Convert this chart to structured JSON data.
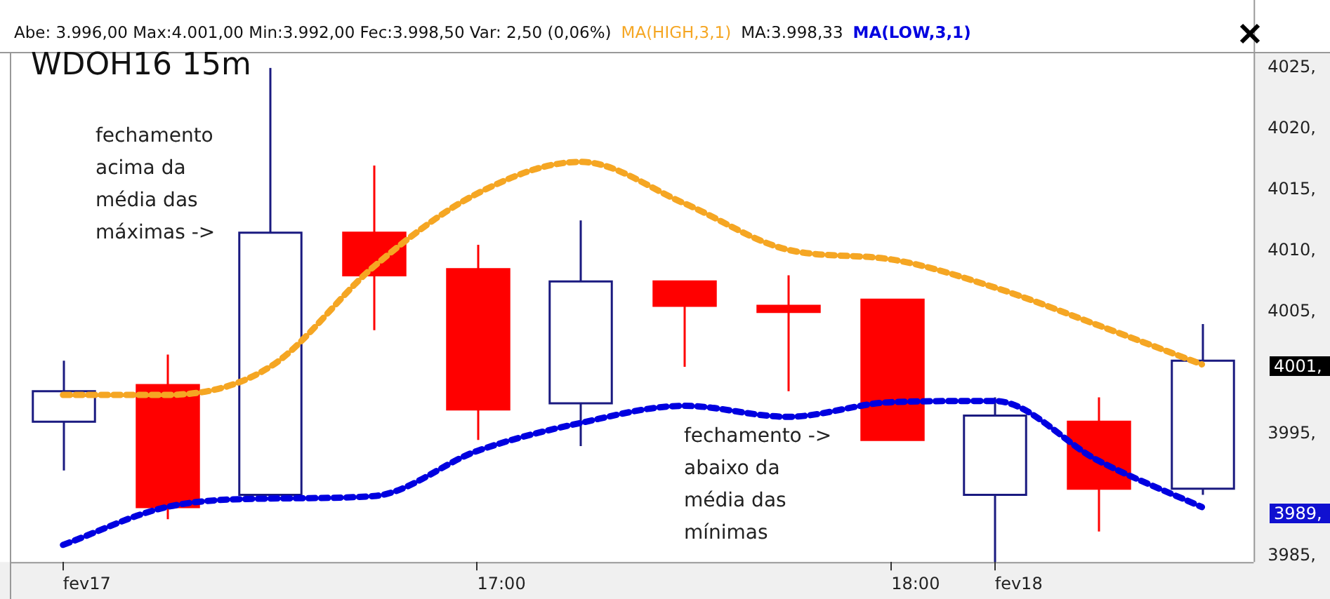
{
  "chart_data": {
    "type": "candlestick",
    "title": "WDOH16 15m",
    "categories": [
      "fev17",
      null,
      null,
      null,
      "17:00",
      null,
      null,
      null,
      "18:00",
      "fev18",
      null,
      null
    ],
    "ohlc": [
      [
        3996,
        4001,
        3992,
        3998.5
      ],
      [
        3999,
        4001.5,
        3988,
        3989
      ],
      [
        3990,
        4025,
        3990,
        4011.5
      ],
      [
        4011.5,
        4017,
        4003.5,
        4008
      ],
      [
        4008.5,
        4010.5,
        3994.5,
        3997
      ],
      [
        3997.5,
        4012.5,
        3994,
        4007.5
      ],
      [
        4007.5,
        4007.5,
        4000.5,
        4005.5
      ],
      [
        4005.5,
        4008,
        3998.5,
        4005
      ],
      [
        4006,
        4006,
        3994.5,
        3994.5
      ],
      [
        3990,
        3998,
        3984.5,
        3996.5
      ],
      [
        3996,
        3998,
        3987,
        3990.5
      ],
      [
        3990.5,
        4004,
        3990,
        4001
      ]
    ],
    "colors": [
      "#ffffff",
      "#ff0000",
      "#ffffff",
      "#ff0000",
      "#ff0000",
      "#ffffff",
      "#ff0000",
      "#ff0000",
      "#ff0000",
      "#ffffff",
      "#ff0000",
      "#ffffff"
    ],
    "series": [
      {
        "type": "line",
        "name": "MA(HIGH,3,1)",
        "color": "#f5a623",
        "values": [
          3998.2,
          3998.2,
          4000.5,
          4008.7,
          4014.7,
          4017.3,
          4013.9,
          4010.1,
          4009.3,
          4007,
          4003.9,
          4000.7
        ]
      },
      {
        "type": "line",
        "name": "MA(LOW,3,1)",
        "color": "#0000e0",
        "values": [
          3985.9,
          3989,
          3989.7,
          3989.9,
          3993.6,
          3995.9,
          3997.3,
          3996.4,
          3997.6,
          3997.7,
          3992.8,
          3989
        ]
      }
    ],
    "line_style": "dashed",
    "legend": "top",
    "grid": false,
    "ylim": [
      3984.5,
      4026.2
    ],
    "yticks": [
      {
        "value": 3985,
        "label": "3985,"
      },
      {
        "value": 3995,
        "label": "3995,"
      },
      {
        "value": 4005,
        "label": "4005,"
      },
      {
        "value": 4010,
        "label": "4010,"
      },
      {
        "value": 4015,
        "label": "4015,"
      },
      {
        "value": 4020,
        "label": "4020,"
      },
      {
        "value": 4025,
        "label": "4025,"
      }
    ],
    "annotations": [
      "Abe: 3.996,00  Max:4.001,00  Min:3.992,00  Fec:3.998,50  Var: 2,50 (0,06%)",
      "MA:3.998,33",
      "fechamento acima da média das máximas ->",
      "fechamento -> abaixo da média das mínimas",
      "4001,",
      "3989,"
    ]
  }
}
